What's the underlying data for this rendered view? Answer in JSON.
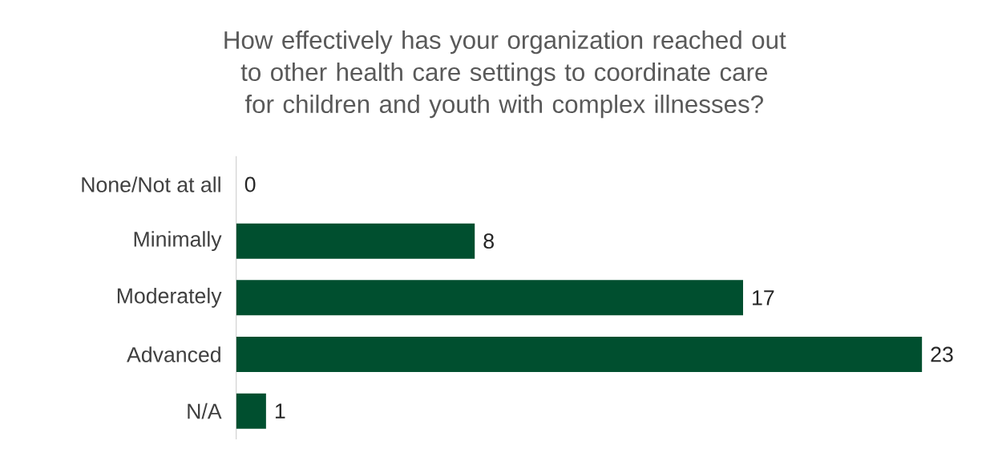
{
  "chart_data": {
    "type": "bar",
    "orientation": "horizontal",
    "title": "How effectively has your organization reached out to other health care settings to coordinate care for children and youth with complex illnesses?",
    "categories": [
      "None/Not at all",
      "Minimally",
      "Moderately",
      "Advanced",
      "N/A"
    ],
    "values": [
      0,
      8,
      17,
      23,
      1
    ],
    "color": "#004f2f",
    "data_labels": true,
    "tick_labels": "y"
  }
}
